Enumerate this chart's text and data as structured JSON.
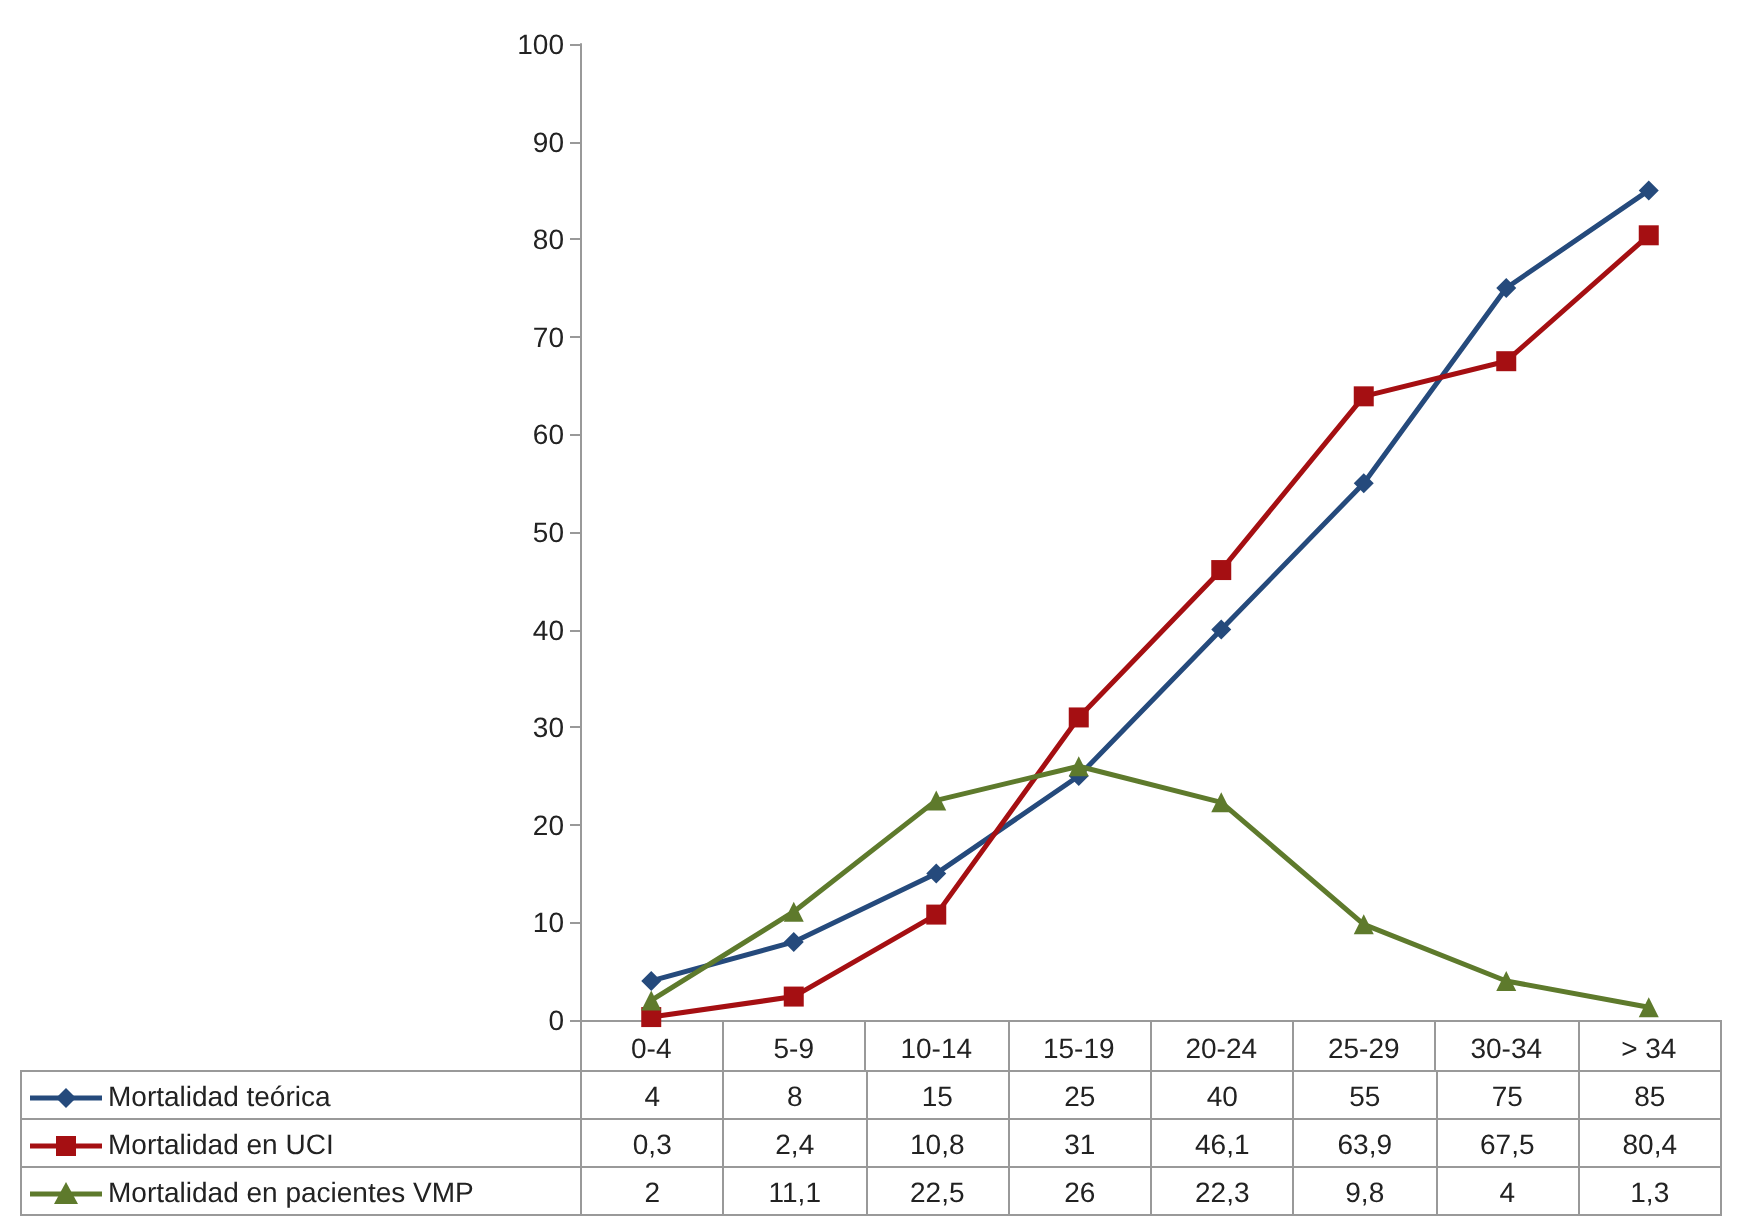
{
  "chart_data": {
    "type": "line",
    "categories": [
      "0-4",
      "5-9",
      "10-14",
      "15-19",
      "20-24",
      "25-29",
      "30-34",
      "> 34"
    ],
    "series": [
      {
        "name": "Mortalidad teórica",
        "color": "#254a7c",
        "marker": "diamond",
        "values": [
          4,
          8,
          15,
          25,
          40,
          55,
          75,
          85
        ],
        "value_labels": [
          "4",
          "8",
          "15",
          "25",
          "40",
          "55",
          "75",
          "85"
        ]
      },
      {
        "name": "Mortalidad en UCI",
        "color": "#a50f12",
        "marker": "square",
        "values": [
          0.3,
          2.4,
          10.8,
          31,
          46.1,
          63.9,
          67.5,
          80.4
        ],
        "value_labels": [
          "0,3",
          "2,4",
          "10,8",
          "31",
          "46,1",
          "63,9",
          "67,5",
          "80,4"
        ]
      },
      {
        "name": "Mortalidad en pacientes VMP",
        "color": "#5e7a2c",
        "marker": "triangle",
        "values": [
          2,
          11.1,
          22.5,
          26,
          22.3,
          9.8,
          4,
          1.3
        ],
        "value_labels": [
          "2",
          "11,1",
          "22,5",
          "26",
          "22,3",
          "9,8",
          "4",
          "1,3"
        ]
      }
    ],
    "ylim": [
      0,
      100
    ],
    "yticks": [
      0,
      10,
      20,
      30,
      40,
      50,
      60,
      70,
      80,
      90,
      100
    ],
    "grid": false,
    "legend": "bottom left",
    "line_style": "solid"
  }
}
